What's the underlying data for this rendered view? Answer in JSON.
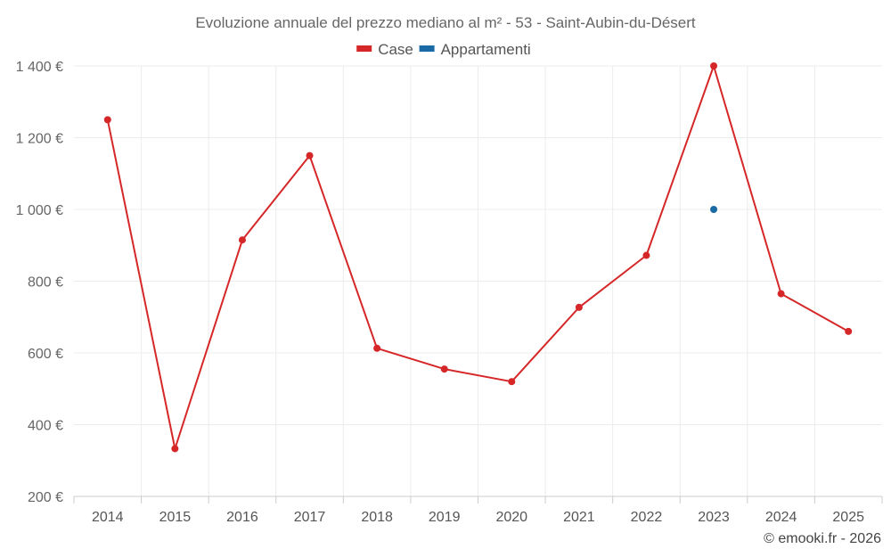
{
  "chart_data": {
    "type": "line",
    "title": "Evoluzione annuale del prezzo mediano al m² - 53 - Saint-Aubin-du-Désert",
    "x": [
      "2014",
      "2015",
      "2016",
      "2017",
      "2018",
      "2019",
      "2020",
      "2021",
      "2022",
      "2023",
      "2024",
      "2025"
    ],
    "ylim": [
      200,
      1400
    ],
    "yticks": [
      200,
      400,
      600,
      800,
      1000,
      1200,
      1400
    ],
    "ytick_labels": [
      "200 €",
      "400 €",
      "600 €",
      "800 €",
      "1 000 €",
      "1 200 €",
      "1 400 €"
    ],
    "grid": true,
    "legend_position": "top-center",
    "series": [
      {
        "name": "Case",
        "color": "#d62728",
        "values": [
          1250,
          333,
          915,
          1150,
          613,
          555,
          520,
          727,
          872,
          1400,
          765,
          660
        ]
      },
      {
        "name": "Appartamenti",
        "color": "#1a6aa6",
        "values": [
          null,
          null,
          null,
          null,
          null,
          null,
          null,
          null,
          null,
          1000,
          null,
          null
        ]
      }
    ]
  },
  "credit": "© emooki.fr - 2026"
}
